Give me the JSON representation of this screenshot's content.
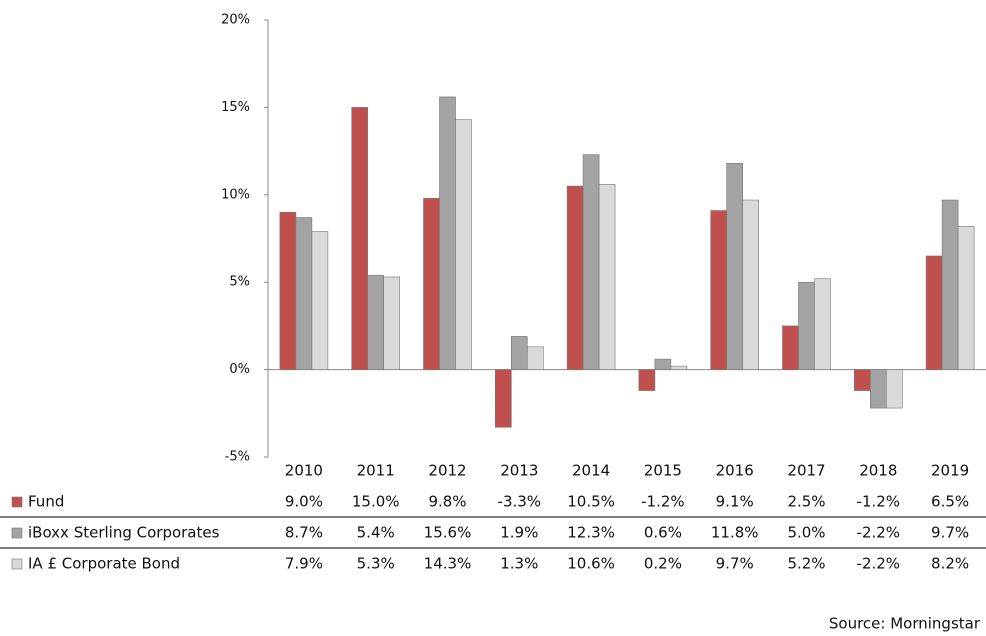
{
  "chart_data": {
    "type": "bar",
    "categories": [
      "2010",
      "2011",
      "2012",
      "2013",
      "2014",
      "2015",
      "2016",
      "2017",
      "2018",
      "2019"
    ],
    "series": [
      {
        "name": "Fund",
        "color": "#c0504d",
        "values": [
          9.0,
          15.0,
          9.8,
          -3.3,
          10.5,
          -1.2,
          9.1,
          2.5,
          -1.2,
          6.5
        ],
        "value_labels": [
          "9.0%",
          "15.0%",
          "9.8%",
          "-3.3%",
          "10.5%",
          "-1.2%",
          "9.1%",
          "2.5%",
          "-1.2%",
          "6.5%"
        ]
      },
      {
        "name": "iBoxx Sterling Corporates",
        "color": "#a3a3a3",
        "values": [
          8.7,
          5.4,
          15.6,
          1.9,
          12.3,
          0.6,
          11.8,
          5.0,
          -2.2,
          9.7
        ],
        "value_labels": [
          "8.7%",
          "5.4%",
          "15.6%",
          "1.9%",
          "12.3%",
          "0.6%",
          "11.8%",
          "5.0%",
          "-2.2%",
          "9.7%"
        ]
      },
      {
        "name": "IA £ Corporate Bond",
        "color": "#d9d9d9",
        "values": [
          7.9,
          5.3,
          14.3,
          1.3,
          10.6,
          0.2,
          9.7,
          5.2,
          -2.2,
          8.2
        ],
        "value_labels": [
          "7.9%",
          "5.3%",
          "14.3%",
          "1.3%",
          "10.6%",
          "0.2%",
          "9.7%",
          "5.2%",
          "-2.2%",
          "8.2%"
        ]
      }
    ],
    "ylim": [
      -5,
      20
    ],
    "yticks": [
      {
        "value": -5,
        "label": "-5%"
      },
      {
        "value": 0,
        "label": "0%"
      },
      {
        "value": 5,
        "label": "5%"
      },
      {
        "value": 10,
        "label": "10%"
      },
      {
        "value": 15,
        "label": "15%"
      },
      {
        "value": 20,
        "label": "20%"
      }
    ],
    "source": "Source: Morningstar"
  }
}
